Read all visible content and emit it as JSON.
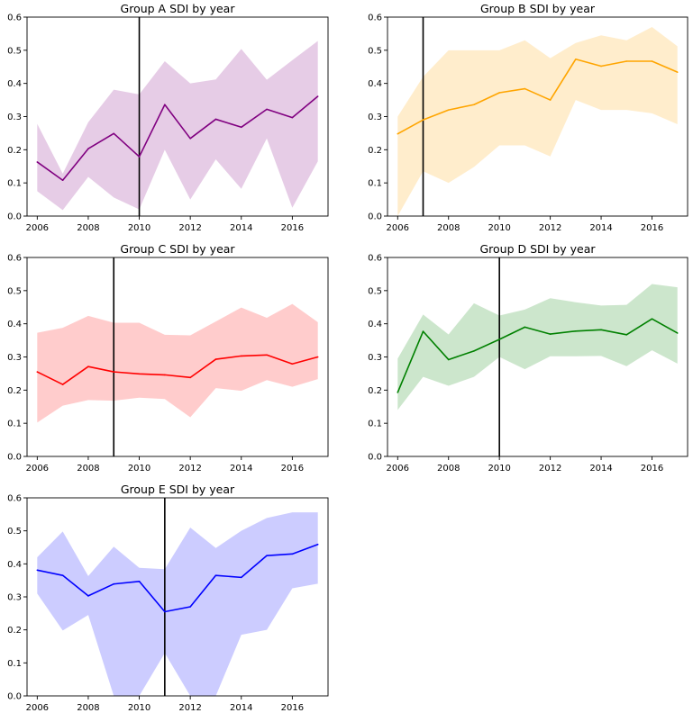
{
  "chart_data": [
    {
      "type": "line",
      "title": "Group A SDI by year",
      "color": "#800080",
      "x": [
        2006,
        2007,
        2008,
        2009,
        2010,
        2011,
        2012,
        2013,
        2014,
        2015,
        2016,
        2017
      ],
      "values": [
        0.163,
        0.108,
        0.203,
        0.249,
        0.179,
        0.336,
        0.234,
        0.292,
        0.268,
        0.322,
        0.297,
        0.361
      ],
      "lower": [
        0.075,
        0.018,
        0.118,
        0.056,
        0.02,
        0.2,
        0.05,
        0.171,
        0.082,
        0.234,
        0.025,
        0.165
      ],
      "upper": [
        0.278,
        0.128,
        0.283,
        0.381,
        0.367,
        0.467,
        0.4,
        0.412,
        0.504,
        0.411,
        0.47,
        0.528
      ],
      "vline": 2010,
      "xticks": [
        2006,
        2008,
        2010,
        2012,
        2014,
        2016
      ],
      "yticks": [
        0.0,
        0.1,
        0.2,
        0.3,
        0.4,
        0.5,
        0.6
      ],
      "xlim": [
        2005.6,
        2017.4
      ],
      "ylim": [
        0,
        0.6
      ],
      "xlabel": "",
      "ylabel": ""
    },
    {
      "type": "line",
      "title": "Group B SDI by year",
      "color": "#ffa500",
      "x": [
        2006,
        2007,
        2008,
        2009,
        2010,
        2011,
        2012,
        2013,
        2014,
        2015,
        2016,
        2017
      ],
      "values": [
        0.248,
        0.29,
        0.32,
        0.336,
        0.372,
        0.384,
        0.35,
        0.473,
        0.452,
        0.467,
        0.467,
        0.434
      ],
      "lower": [
        0.0,
        0.135,
        0.1,
        0.148,
        0.213,
        0.213,
        0.18,
        0.35,
        0.32,
        0.32,
        0.31,
        0.277
      ],
      "upper": [
        0.3,
        0.42,
        0.5,
        0.5,
        0.5,
        0.53,
        0.476,
        0.522,
        0.545,
        0.53,
        0.57,
        0.512
      ],
      "vline": 2007,
      "xticks": [
        2006,
        2008,
        2010,
        2012,
        2014,
        2016
      ],
      "yticks": [
        0.0,
        0.1,
        0.2,
        0.3,
        0.4,
        0.5,
        0.6
      ],
      "xlim": [
        2005.6,
        2017.4
      ],
      "ylim": [
        0,
        0.6
      ],
      "xlabel": "",
      "ylabel": ""
    },
    {
      "type": "line",
      "title": "Group C SDI by year",
      "color": "#ff0000",
      "x": [
        2006,
        2007,
        2008,
        2009,
        2010,
        2011,
        2012,
        2013,
        2014,
        2015,
        2016,
        2017
      ],
      "values": [
        0.255,
        0.217,
        0.271,
        0.255,
        0.249,
        0.246,
        0.238,
        0.293,
        0.303,
        0.306,
        0.279,
        0.3
      ],
      "lower": [
        0.102,
        0.153,
        0.17,
        0.168,
        0.177,
        0.173,
        0.118,
        0.206,
        0.198,
        0.23,
        0.21,
        0.233
      ],
      "upper": [
        0.373,
        0.388,
        0.424,
        0.403,
        0.403,
        0.367,
        0.365,
        0.407,
        0.449,
        0.418,
        0.46,
        0.405
      ],
      "vline": 2009,
      "xticks": [
        2006,
        2008,
        2010,
        2012,
        2014,
        2016
      ],
      "yticks": [
        0.0,
        0.1,
        0.2,
        0.3,
        0.4,
        0.5,
        0.6
      ],
      "xlim": [
        2005.6,
        2017.4
      ],
      "ylim": [
        0,
        0.6
      ],
      "xlabel": "",
      "ylabel": ""
    },
    {
      "type": "line",
      "title": "Group D SDI by year",
      "color": "#008000",
      "x": [
        2006,
        2007,
        2008,
        2009,
        2010,
        2011,
        2012,
        2013,
        2014,
        2015,
        2016,
        2017
      ],
      "values": [
        0.193,
        0.377,
        0.292,
        0.318,
        0.353,
        0.39,
        0.369,
        0.378,
        0.382,
        0.367,
        0.415,
        0.372
      ],
      "lower": [
        0.14,
        0.24,
        0.213,
        0.24,
        0.3,
        0.263,
        0.302,
        0.302,
        0.303,
        0.272,
        0.32,
        0.28
      ],
      "upper": [
        0.295,
        0.428,
        0.368,
        0.462,
        0.425,
        0.443,
        0.477,
        0.465,
        0.455,
        0.457,
        0.52,
        0.51
      ],
      "vline": 2010,
      "xticks": [
        2006,
        2008,
        2010,
        2012,
        2014,
        2016
      ],
      "yticks": [
        0.0,
        0.1,
        0.2,
        0.3,
        0.4,
        0.5,
        0.6
      ],
      "xlim": [
        2005.6,
        2017.4
      ],
      "ylim": [
        0,
        0.6
      ],
      "xlabel": "",
      "ylabel": ""
    },
    {
      "type": "line",
      "title": "Group E SDI by year",
      "color": "#0000ff",
      "x": [
        2006,
        2007,
        2008,
        2009,
        2010,
        2011,
        2012,
        2013,
        2014,
        2015,
        2016,
        2017
      ],
      "values": [
        0.381,
        0.365,
        0.303,
        0.339,
        0.347,
        0.255,
        0.27,
        0.365,
        0.359,
        0.425,
        0.43,
        0.459
      ],
      "lower": [
        0.31,
        0.198,
        0.245,
        0.0,
        0.0,
        0.13,
        0.0,
        0.0,
        0.185,
        0.2,
        0.326,
        0.34
      ],
      "upper": [
        0.42,
        0.498,
        0.363,
        0.452,
        0.388,
        0.384,
        0.51,
        0.448,
        0.5,
        0.539,
        0.556,
        0.556
      ],
      "vline": 2011,
      "xticks": [
        2006,
        2008,
        2010,
        2012,
        2014,
        2016
      ],
      "yticks": [
        0.0,
        0.1,
        0.2,
        0.3,
        0.4,
        0.5,
        0.6
      ],
      "xlim": [
        2005.6,
        2017.4
      ],
      "ylim": [
        0,
        0.6
      ],
      "xlabel": "",
      "ylabel": ""
    }
  ]
}
